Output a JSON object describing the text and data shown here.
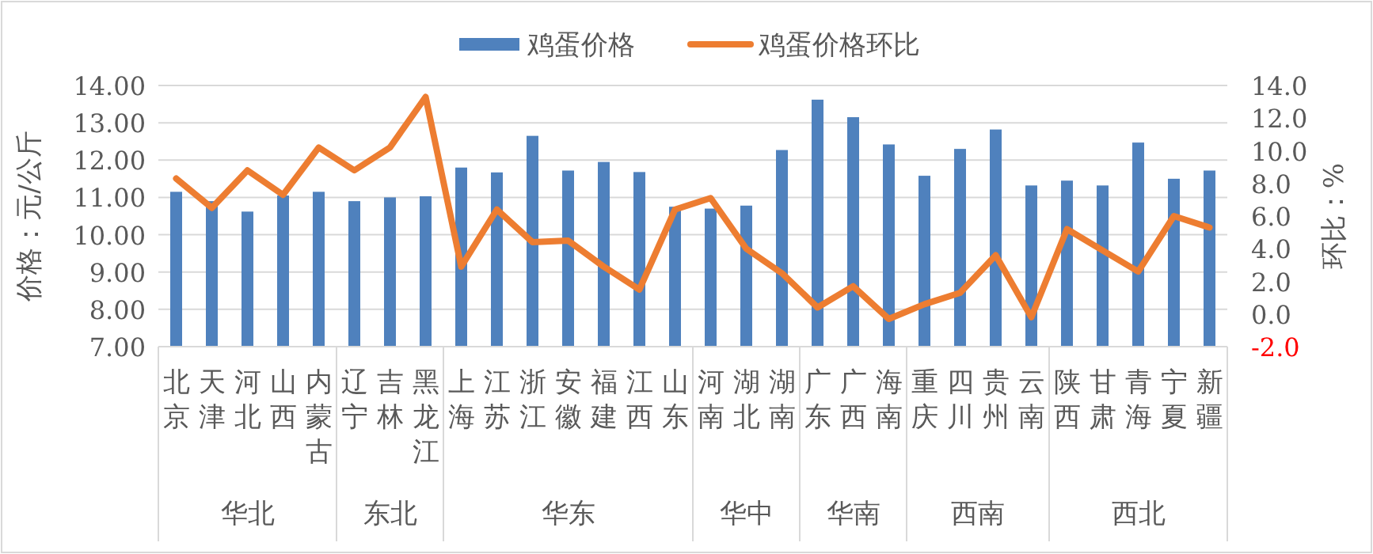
{
  "chart_data": {
    "type": "bar",
    "ylabel": "价格：元/公斤",
    "y2label": "环比：%",
    "categories": [
      "北京",
      "天津",
      "河北",
      "山西",
      "内蒙古",
      "辽宁",
      "吉林",
      "黑龙江",
      "上海",
      "江苏",
      "浙江",
      "安徽",
      "福建",
      "江西",
      "山东",
      "河南",
      "湖北",
      "湖南",
      "广东",
      "广西",
      "海南",
      "重庆",
      "四川",
      "贵州",
      "云南",
      "陕西",
      "甘肃",
      "青海",
      "宁夏",
      "新疆"
    ],
    "series": [
      {
        "name": "鸡蛋价格",
        "color": "#4f81bd",
        "values": [
          11.15,
          10.9,
          10.62,
          11.05,
          11.15,
          10.9,
          11.0,
          11.03,
          11.8,
          11.67,
          12.65,
          11.72,
          11.95,
          11.68,
          10.75,
          10.7,
          10.78,
          12.27,
          13.62,
          13.15,
          12.42,
          11.58,
          12.3,
          12.82,
          11.32,
          11.45,
          11.32,
          12.47,
          11.5,
          11.72
        ]
      },
      {
        "name": "鸡蛋价格环比",
        "color": "#ed7d31",
        "type": "line",
        "axis": "y2",
        "values": [
          8.3,
          6.5,
          8.8,
          7.3,
          10.2,
          8.8,
          10.2,
          13.3,
          2.9,
          6.4,
          4.4,
          4.5,
          2.9,
          1.5,
          6.4,
          7.1,
          4.0,
          2.5,
          0.4,
          1.7,
          -0.3,
          0.6,
          1.3,
          3.6,
          -0.2,
          5.2,
          3.9,
          2.6,
          6.0,
          5.3
        ]
      }
    ],
    "ylim": [
      7,
      14
    ],
    "yticks": [
      {
        "value": 7,
        "label": "7.00"
      },
      {
        "value": 8,
        "label": "8.00"
      },
      {
        "value": 9,
        "label": "9.00"
      },
      {
        "value": 10,
        "label": "10.00"
      },
      {
        "value": 11,
        "label": "11.00"
      },
      {
        "value": 12,
        "label": "12.00"
      },
      {
        "value": 13,
        "label": "13.00"
      },
      {
        "value": 14,
        "label": "14.00"
      }
    ],
    "y2lim": [
      -2,
      14
    ],
    "y2ticks": [
      {
        "value": -2,
        "label": "-2.0"
      },
      {
        "value": 0,
        "label": "0.0"
      },
      {
        "value": 2,
        "label": "2.0"
      },
      {
        "value": 4,
        "label": "4.0"
      },
      {
        "value": 6,
        "label": "6.0"
      },
      {
        "value": 8,
        "label": "8.0"
      },
      {
        "value": 10,
        "label": "10.0"
      },
      {
        "value": 12,
        "label": "12.0"
      },
      {
        "value": 14,
        "label": "14.0"
      }
    ],
    "annotations": [
      "华北",
      "东北",
      "华东",
      "华中",
      "华南",
      "西南",
      "西北"
    ],
    "grid": "y",
    "legend": "top",
    "marker": "none",
    "line_style": "solid"
  }
}
